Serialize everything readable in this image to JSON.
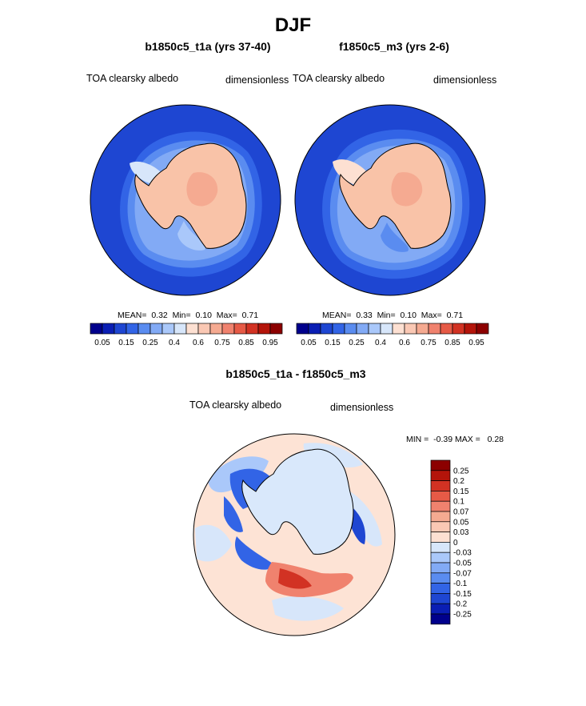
{
  "chart_data": [
    {
      "type": "heatmap",
      "projection": "south-polar-stereographic",
      "title": "b1850c5_t1a (yrs 37-40)",
      "left_label": "TOA clearsky albedo",
      "right_label": "dimensionless",
      "stats": {
        "mean_label": "MEAN=",
        "mean": "0.32",
        "min_label": "Min=",
        "min": "0.10",
        "max_label": "Max=",
        "max": "0.71"
      },
      "colorbar_ticks": [
        "0.05",
        "0.15",
        "0.25",
        "0.4",
        "0.6",
        "0.75",
        "0.85",
        "0.95"
      ]
    },
    {
      "type": "heatmap",
      "projection": "south-polar-stereographic",
      "title": "f1850c5_m3 (yrs 2-6)",
      "left_label": "TOA clearsky albedo",
      "right_label": "dimensionless",
      "stats": {
        "mean_label": "MEAN=",
        "mean": "0.33",
        "min_label": "Min=",
        "min": "0.10",
        "max_label": "Max=",
        "max": "0.71"
      },
      "colorbar_ticks": [
        "0.05",
        "0.15",
        "0.25",
        "0.4",
        "0.6",
        "0.75",
        "0.85",
        "0.95"
      ]
    },
    {
      "type": "heatmap",
      "projection": "south-polar-stereographic",
      "title": "b1850c5_t1a - f1850c5_m3",
      "left_label": "TOA clearsky albedo",
      "right_label": "dimensionless",
      "stats": {
        "min_label": "MIN =",
        "min": "-0.39",
        "max_label": "MAX =",
        "max": "0.28"
      },
      "colorbar_ticks": [
        "0.25",
        "0.2",
        "0.15",
        "0.1",
        "0.07",
        "0.05",
        "0.03",
        "0",
        "-0.03",
        "-0.05",
        "-0.07",
        "-0.1",
        "-0.15",
        "-0.2",
        "-0.25"
      ]
    }
  ],
  "page": {
    "title": "DJF"
  },
  "colors": {
    "abs_scale": [
      "#00008c",
      "#0a1eb4",
      "#1e46d2",
      "#3264e6",
      "#5a8cf0",
      "#82aaf5",
      "#aac8fa",
      "#d7e6fa",
      "#fde0d2",
      "#fac8b4",
      "#f5aa91",
      "#f0826e",
      "#e65a46",
      "#d23223",
      "#b4140a",
      "#8c0000"
    ],
    "diff_scale": [
      "#8c0000",
      "#b4140a",
      "#d23223",
      "#e65a46",
      "#f0826e",
      "#f5aa91",
      "#fac8b4",
      "#fde0d2",
      "#d7e6fa",
      "#aac8fa",
      "#82aaf5",
      "#5a8cf0",
      "#3264e6",
      "#1e46d2",
      "#0a1eb4",
      "#00008c"
    ],
    "ocean": "#1e46d2",
    "land": "#f9c3a8",
    "ice_edge": "#82aaf5",
    "diff_bg": "#fde3d5",
    "diff_land": "#d9e8fb"
  }
}
